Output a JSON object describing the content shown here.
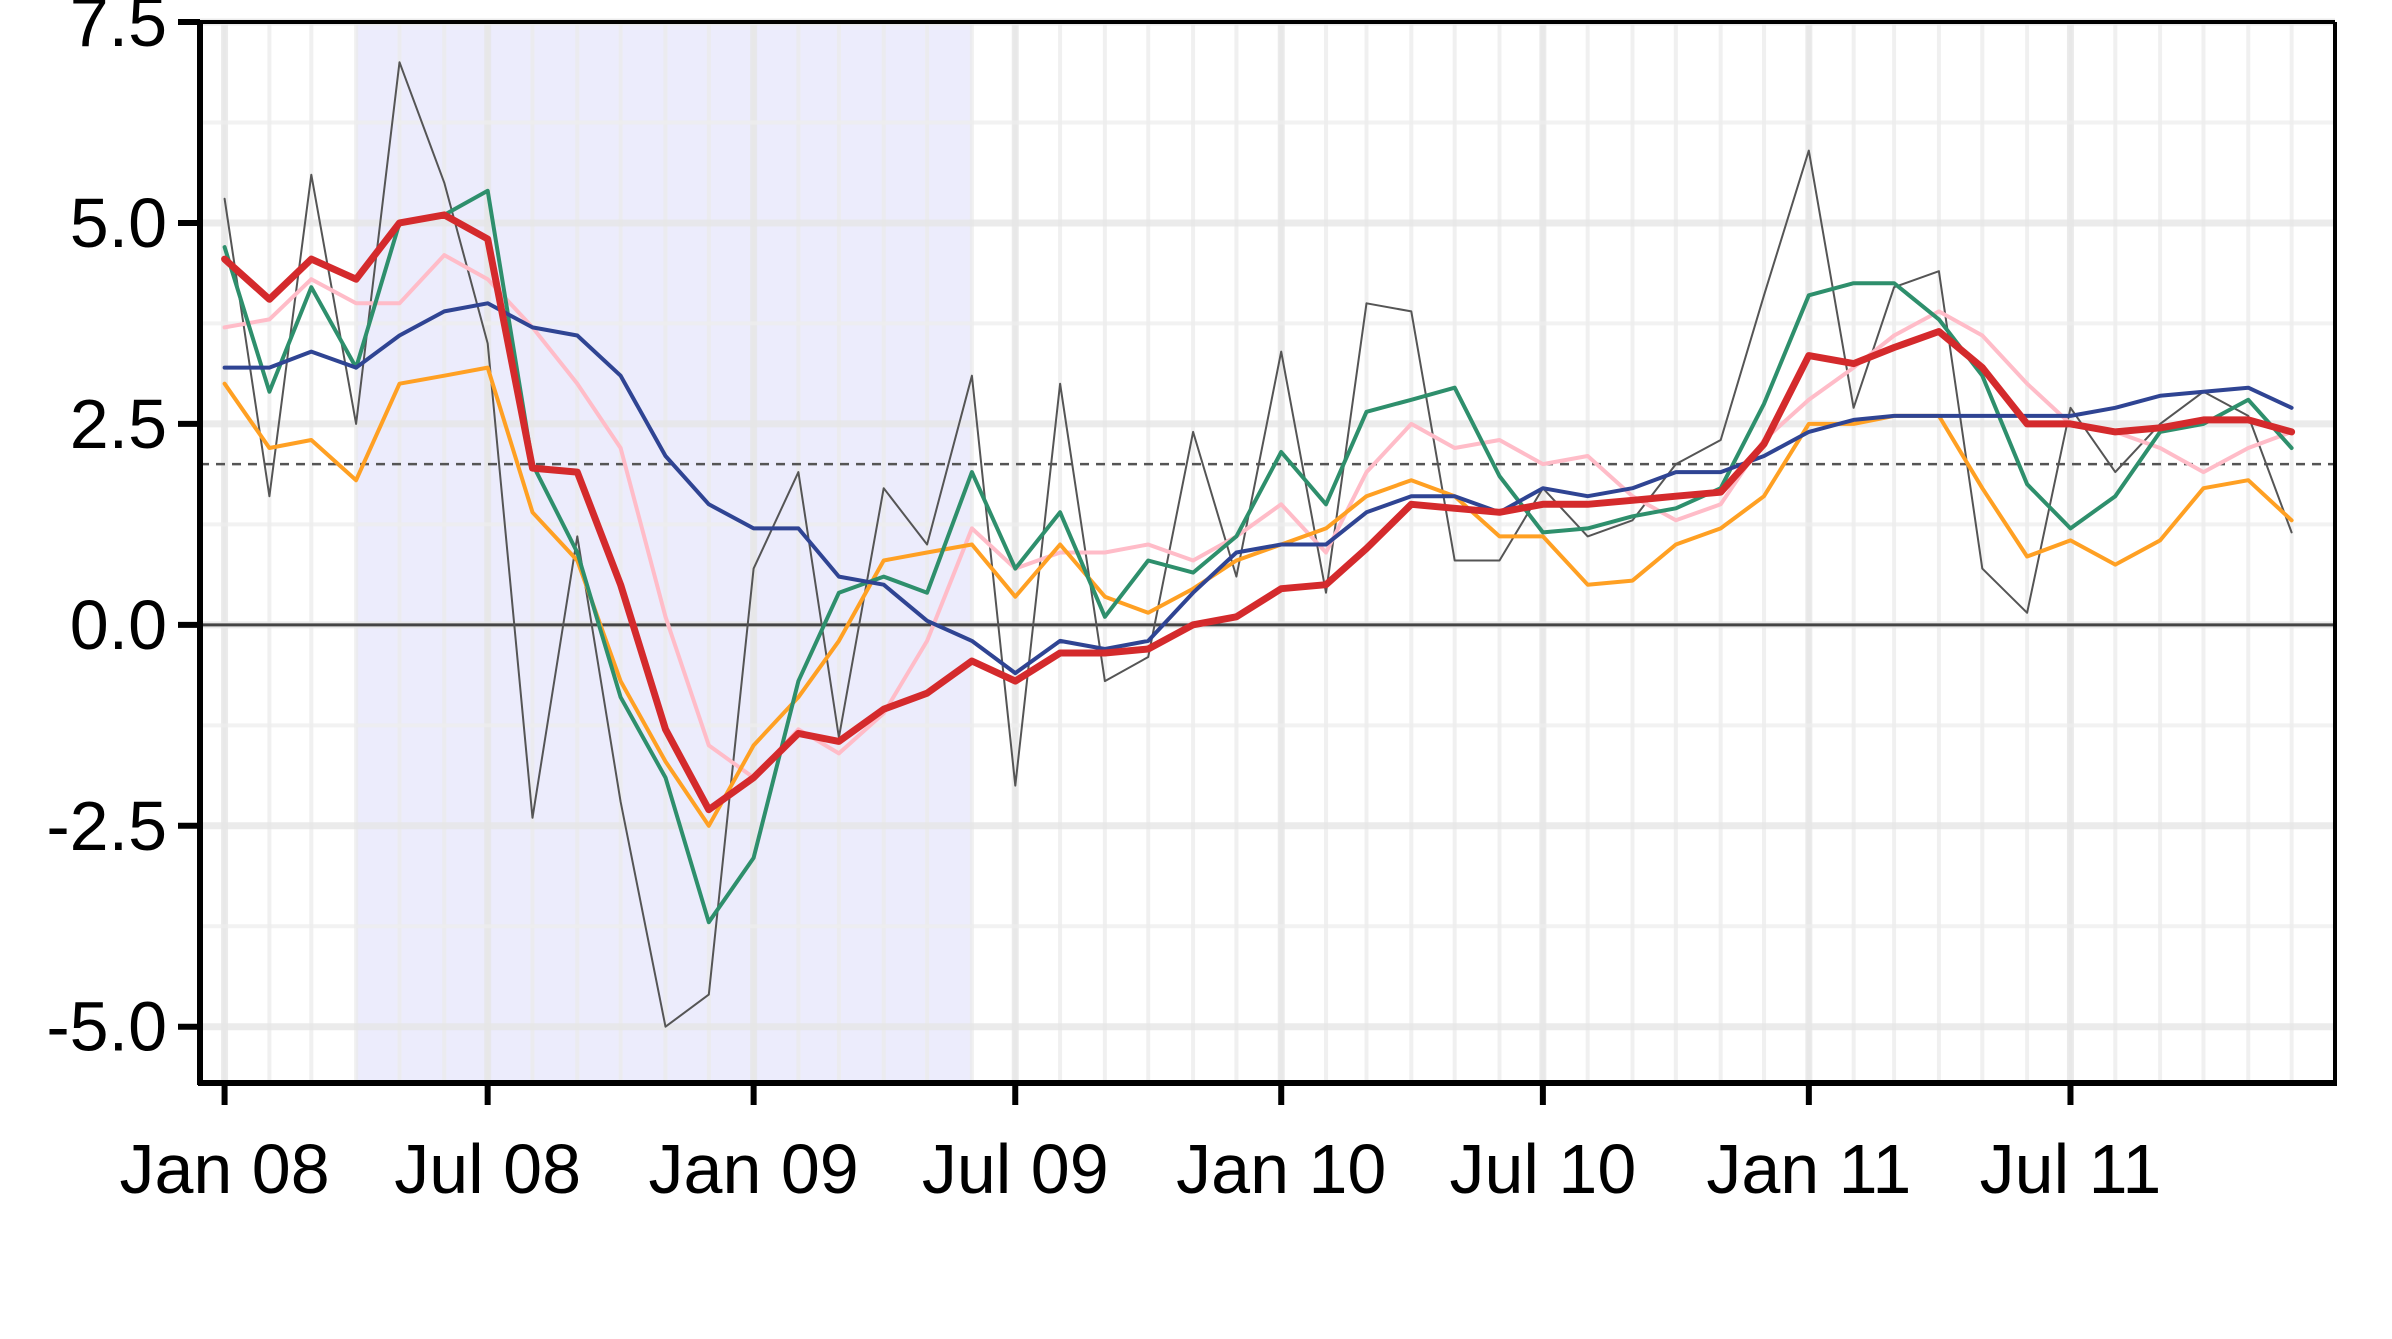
{
  "chart_data": {
    "type": "line",
    "title": "",
    "xlabel": "",
    "ylabel": "",
    "x": [
      "2008-01",
      "2008-02",
      "2008-03",
      "2008-04",
      "2008-05",
      "2008-06",
      "2008-07",
      "2008-08",
      "2008-09",
      "2008-10",
      "2008-11",
      "2008-12",
      "2009-01",
      "2009-02",
      "2009-03",
      "2009-04",
      "2009-05",
      "2009-06",
      "2009-07",
      "2009-08",
      "2009-09",
      "2009-10",
      "2009-11",
      "2009-12",
      "2010-01",
      "2010-02",
      "2010-03",
      "2010-04",
      "2010-05",
      "2010-06",
      "2010-07",
      "2010-08",
      "2010-09",
      "2010-10",
      "2010-11",
      "2010-12",
      "2011-01",
      "2011-02",
      "2011-03",
      "2011-04",
      "2011-05",
      "2011-06",
      "2011-07",
      "2011-08",
      "2011-09",
      "2011-10",
      "2011-11",
      "2011-12"
    ],
    "xlim": [
      "2007-12-15",
      "2011-12-31"
    ],
    "x_ticks": [
      {
        "date": "2008-01",
        "label": "Jan 08"
      },
      {
        "date": "2008-07",
        "label": "Jul 08"
      },
      {
        "date": "2009-01",
        "label": "Jan 09"
      },
      {
        "date": "2009-07",
        "label": "Jul 09"
      },
      {
        "date": "2010-01",
        "label": "Jan 10"
      },
      {
        "date": "2010-07",
        "label": "Jul 10"
      },
      {
        "date": "2011-01",
        "label": "Jan 11"
      },
      {
        "date": "2011-07",
        "label": "Jul 11"
      }
    ],
    "ylim": [
      -5.7,
      7.5
    ],
    "y_ticks": [
      {
        "value": 7.5,
        "label": "7.5"
      },
      {
        "value": 5.0,
        "label": "5.0"
      },
      {
        "value": 2.5,
        "label": "2.5"
      },
      {
        "value": 0.0,
        "label": "0.0"
      },
      {
        "value": -2.5,
        "label": "-2.5"
      },
      {
        "value": -5.0,
        "label": "-5.0"
      }
    ],
    "grid": true,
    "reference_lines": [
      {
        "y": 2.0,
        "style": "dashed",
        "color": "#555555"
      },
      {
        "y": 0.0,
        "style": "solid",
        "color": "#444444"
      }
    ],
    "shaded_region": {
      "from": "2008-04",
      "to": "2009-06",
      "color": "#ececfc"
    },
    "series": [
      {
        "color": "#555555",
        "width": 2,
        "values": [
          5.3,
          1.6,
          5.6,
          2.5,
          7.0,
          5.5,
          3.5,
          -2.4,
          1.1,
          -2.2,
          -5.0,
          -4.6,
          0.7,
          1.9,
          -1.4,
          1.7,
          1.0,
          3.1,
          -2.0,
          3.0,
          -0.7,
          -0.4,
          2.4,
          0.6,
          3.4,
          0.4,
          4.0,
          3.9,
          0.8,
          0.8,
          1.7,
          1.1,
          1.3,
          2.0,
          2.3,
          4.1,
          5.9,
          2.7,
          4.2,
          4.4,
          0.7,
          0.15,
          2.7,
          1.9,
          2.5,
          2.9,
          2.6,
          1.15
        ]
      },
      {
        "color": "#ffbcc8",
        "width": 4,
        "values": [
          3.7,
          3.8,
          4.3,
          4.0,
          4.0,
          4.6,
          4.3,
          3.7,
          3.0,
          2.2,
          0.1,
          -1.5,
          -1.9,
          -1.3,
          -1.6,
          -1.1,
          -0.2,
          1.2,
          0.7,
          0.9,
          0.9,
          1.0,
          0.8,
          1.1,
          1.5,
          0.9,
          1.9,
          2.5,
          2.2,
          2.3,
          2.0,
          2.1,
          1.6,
          1.3,
          1.5,
          2.3,
          2.8,
          3.2,
          3.6,
          3.9,
          3.6,
          3.0,
          2.5,
          2.4,
          2.2,
          1.9,
          2.2,
          2.4
        ]
      },
      {
        "color": "#ffa023",
        "width": 4,
        "values": [
          3.0,
          2.2,
          2.3,
          1.8,
          3.0,
          3.1,
          3.2,
          1.4,
          0.8,
          -0.7,
          -1.7,
          -2.5,
          -1.5,
          -0.9,
          -0.2,
          0.8,
          0.9,
          1.0,
          0.35,
          1.0,
          0.35,
          0.15,
          0.45,
          0.8,
          1.0,
          1.2,
          1.6,
          1.8,
          1.6,
          1.1,
          1.1,
          0.5,
          0.55,
          1.0,
          1.2,
          1.6,
          2.5,
          2.5,
          2.6,
          2.6,
          1.7,
          0.85,
          1.05,
          0.75,
          1.05,
          1.7,
          1.8,
          1.3
        ]
      },
      {
        "color": "#2e8f6c",
        "width": 4,
        "values": [
          4.7,
          2.9,
          4.2,
          3.2,
          5.0,
          5.1,
          5.4,
          2.0,
          0.9,
          -0.9,
          -1.9,
          -3.7,
          -2.9,
          -0.7,
          0.4,
          0.6,
          0.4,
          1.9,
          0.7,
          1.4,
          0.1,
          0.8,
          0.65,
          1.1,
          2.15,
          1.5,
          2.65,
          2.8,
          2.95,
          1.85,
          1.15,
          1.2,
          1.35,
          1.45,
          1.7,
          2.75,
          4.1,
          4.25,
          4.25,
          3.8,
          3.1,
          1.75,
          1.2,
          1.6,
          2.4,
          2.5,
          2.8,
          2.2
        ]
      },
      {
        "color": "#2f4493",
        "width": 4,
        "values": [
          3.2,
          3.2,
          3.4,
          3.2,
          3.6,
          3.9,
          4.0,
          3.7,
          3.6,
          3.1,
          2.1,
          1.5,
          1.2,
          1.2,
          0.6,
          0.5,
          0.05,
          -0.2,
          -0.6,
          -0.2,
          -0.3,
          -0.2,
          0.4,
          0.9,
          1.0,
          1.0,
          1.4,
          1.6,
          1.6,
          1.4,
          1.7,
          1.6,
          1.7,
          1.9,
          1.9,
          2.1,
          2.4,
          2.55,
          2.6,
          2.6,
          2.6,
          2.6,
          2.6,
          2.7,
          2.85,
          2.9,
          2.95,
          2.7
        ]
      },
      {
        "color": "#d42a2c",
        "width": 7,
        "values": [
          4.55,
          4.05,
          4.55,
          4.3,
          5.0,
          5.1,
          4.8,
          1.95,
          1.9,
          0.5,
          -1.3,
          -2.3,
          -1.9,
          -1.35,
          -1.45,
          -1.05,
          -0.85,
          -0.45,
          -0.7,
          -0.35,
          -0.35,
          -0.3,
          0.0,
          0.1,
          0.45,
          0.5,
          0.95,
          1.5,
          1.45,
          1.4,
          1.5,
          1.5,
          1.55,
          1.6,
          1.65,
          2.25,
          3.35,
          3.25,
          3.45,
          3.65,
          3.2,
          2.5,
          2.5,
          2.4,
          2.45,
          2.55,
          2.55,
          2.4
        ]
      }
    ]
  }
}
